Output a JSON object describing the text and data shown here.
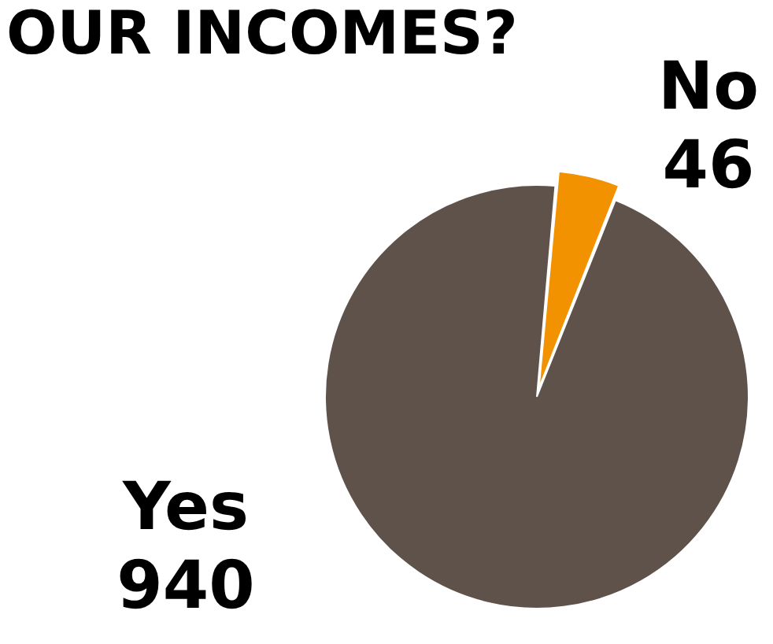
{
  "chart_data": {
    "type": "pie",
    "title": "OUR INCOMES?",
    "categories": [
      "No",
      "Yes"
    ],
    "values": [
      46,
      940
    ],
    "colors": [
      "#f39200",
      "#5e524b"
    ],
    "data_labels": true,
    "legend": false
  }
}
